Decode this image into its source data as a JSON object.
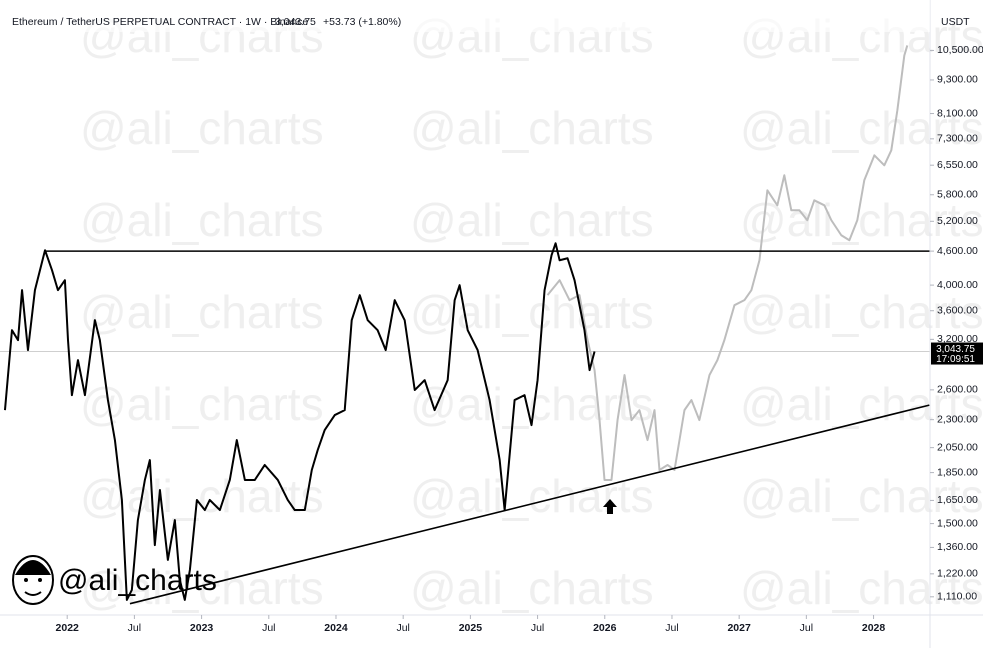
{
  "chart_data": {
    "type": "line",
    "symbol": "Ethereum / TetherUS PERPETUAL CONTRACT · 1W · Binance",
    "change": "+53.73 (+1.80%)",
    "currency": "USDT",
    "countdown": "17:09:51",
    "watermark": "@ali_charts",
    "last_price": {
      "value": 3043.75,
      "label": "3,043.75"
    },
    "log_scale": true,
    "xlim": [
      2021.5,
      2028.42
    ],
    "ylim": [
      1030,
      12400
    ],
    "xticks": [
      {
        "value": 2022,
        "label": "2022"
      },
      {
        "value": 2022.5,
        "label": "Jul"
      },
      {
        "value": 2023,
        "label": "2023"
      },
      {
        "value": 2023.5,
        "label": "Jul"
      },
      {
        "value": 2024,
        "label": "2024"
      },
      {
        "value": 2024.5,
        "label": "Jul"
      },
      {
        "value": 2025,
        "label": "2025"
      },
      {
        "value": 2025.5,
        "label": "Jul"
      },
      {
        "value": 2026,
        "label": "2026"
      },
      {
        "value": 2026.5,
        "label": "Jul"
      },
      {
        "value": 2027,
        "label": "2027"
      },
      {
        "value": 2027.5,
        "label": "Jul"
      },
      {
        "value": 2028,
        "label": "2028"
      }
    ],
    "yticks": [
      {
        "value": 1110,
        "label": "1,110.00"
      },
      {
        "value": 1220,
        "label": "1,220.00"
      },
      {
        "value": 1360,
        "label": "1,360.00"
      },
      {
        "value": 1500,
        "label": "1,500.00"
      },
      {
        "value": 1650,
        "label": "1,650.00"
      },
      {
        "value": 1850,
        "label": "1,850.00"
      },
      {
        "value": 2050,
        "label": "2,050.00"
      },
      {
        "value": 2300,
        "label": "2,300.00"
      },
      {
        "value": 2600,
        "label": "2,600.00"
      },
      {
        "value": 3200,
        "label": "3,200.00"
      },
      {
        "value": 3600,
        "label": "3,600.00"
      },
      {
        "value": 4000,
        "label": "4,000.00"
      },
      {
        "value": 4600,
        "label": "4,600.00"
      },
      {
        "value": 5200,
        "label": "5,200.00"
      },
      {
        "value": 5800,
        "label": "5,800.00"
      },
      {
        "value": 6550,
        "label": "6,550.00"
      },
      {
        "value": 7300,
        "label": "7,300.00"
      },
      {
        "value": 8100,
        "label": "8,100.00"
      },
      {
        "value": 9300,
        "label": "9,300.00"
      },
      {
        "value": 10500,
        "label": "10,500.00"
      }
    ],
    "series": [
      {
        "color": "#bdbdbd",
        "x": [
          2025.574,
          2025.664,
          2025.738,
          2025.812,
          2025.872,
          2025.924,
          2025.961,
          2025.998,
          2026.05,
          2026.095,
          2026.147,
          2026.199,
          2026.258,
          2026.318,
          2026.37,
          2026.407,
          2026.467,
          2026.519,
          2026.593,
          2026.645,
          2026.704,
          2026.779,
          2026.838,
          2026.89,
          2026.965,
          2027.039,
          2027.091,
          2027.151,
          2027.21,
          2027.284,
          2027.336,
          2027.388,
          2027.448,
          2027.507,
          2027.559,
          2027.634,
          2027.686,
          2027.76,
          2027.82,
          2027.879,
          2027.931,
          2028.006,
          2028.08,
          2028.132,
          2028.177,
          2028.229,
          2028.251
        ],
        "values": [
          3838,
          4081,
          3760,
          3838,
          3190,
          2820,
          2296,
          1795,
          1795,
          2296,
          2763,
          2296,
          2392,
          2115,
          2392,
          1870,
          1909,
          1870,
          2392,
          2493,
          2296,
          2763,
          2938,
          3190,
          3683,
          3760,
          3918,
          4431,
          5907,
          5554,
          6284,
          5441,
          5441,
          5223,
          5669,
          5554,
          5223,
          4910,
          4810,
          5223,
          6155,
          6821,
          6546,
          6963,
          8206,
          10287,
          10718
        ]
      },
      {
        "color": "#000000",
        "x": [
          2021.537,
          2021.589,
          2021.634,
          2021.664,
          2021.708,
          2021.76,
          2021.835,
          2021.887,
          2021.931,
          2021.983,
          2022.006,
          2022.035,
          2022.08,
          2022.132,
          2022.206,
          2022.243,
          2022.303,
          2022.355,
          2022.407,
          2022.444,
          2022.481,
          2022.526,
          2022.578,
          2022.615,
          2022.652,
          2022.69,
          2022.749,
          2022.801,
          2022.838,
          2022.875,
          2022.913,
          2022.965,
          2023.024,
          2023.061,
          2023.136,
          2023.21,
          2023.262,
          2023.322,
          2023.396,
          2023.47,
          2023.567,
          2023.641,
          2023.693,
          2023.768,
          2023.82,
          2023.864,
          2023.916,
          2023.991,
          2024.065,
          2024.117,
          2024.177,
          2024.236,
          2024.31,
          2024.37,
          2024.437,
          2024.511,
          2024.586,
          2024.66,
          2024.734,
          2024.831,
          2024.883,
          2024.92,
          2024.98,
          2025.054,
          2025.143,
          2025.218,
          2025.255,
          2025.329,
          2025.403,
          2025.455,
          2025.5,
          2025.552,
          2025.604,
          2025.634,
          2025.664,
          2025.723,
          2025.775,
          2025.849,
          2025.887,
          2025.924
        ],
        "values": [
          2392,
          3323,
          3190,
          3918,
          3062,
          3918,
          4617,
          4253,
          3918,
          4081,
          3190,
          2544,
          2938,
          2544,
          3463,
          3190,
          2493,
          2115,
          1653,
          1096,
          1142,
          1522,
          1795,
          1948,
          1373,
          1722,
          1292,
          1522,
          1190,
          1096,
          1240,
          1653,
          1586,
          1653,
          1586,
          1795,
          2115,
          1795,
          1795,
          1909,
          1795,
          1653,
          1586,
          1586,
          1870,
          2030,
          2204,
          2344,
          2392,
          3463,
          3838,
          3463,
          3323,
          3062,
          3760,
          3463,
          2598,
          2706,
          2392,
          2706,
          3760,
          3999,
          3323,
          3062,
          2493,
          1948,
          1586,
          2493,
          2544,
          2249,
          2706,
          3918,
          4523,
          4751,
          4431,
          4467,
          4081,
          3323,
          2820,
          3043.75
        ]
      }
    ],
    "lines": [
      {
        "color": "#000000",
        "x": [
          2022.467,
          2028.415
        ],
        "values": [
          1079,
          2442
        ]
      },
      {
        "color": "#000000",
        "x": [
          2021.835,
          2028.42
        ],
        "values": [
          4600,
          4600
        ]
      }
    ]
  }
}
